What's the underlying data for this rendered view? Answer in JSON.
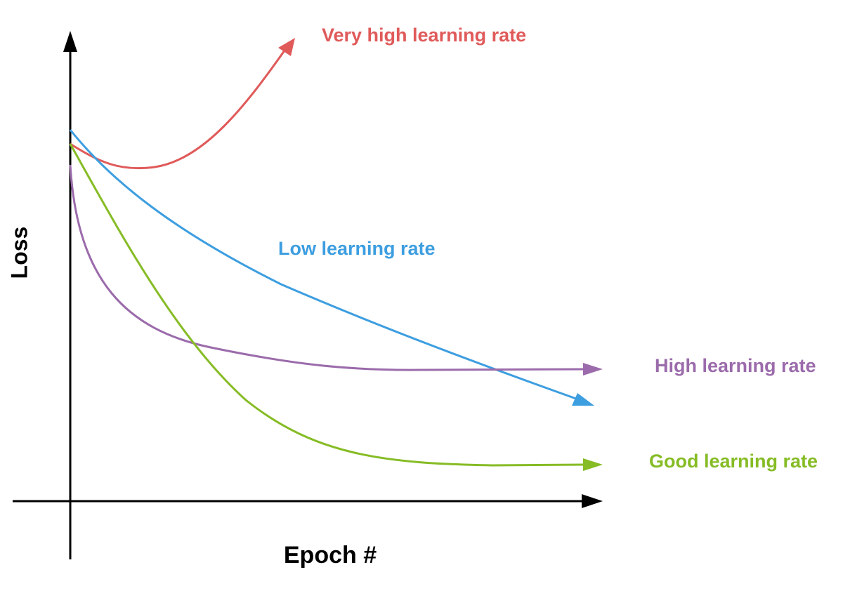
{
  "axes": {
    "y_label": "Loss",
    "x_label": "Epoch #"
  },
  "curves": [
    {
      "label": "Very high learning rate"
    },
    {
      "label": "Low learning rate"
    },
    {
      "label": "High learning rate"
    },
    {
      "label": "Good learning rate"
    }
  ]
}
